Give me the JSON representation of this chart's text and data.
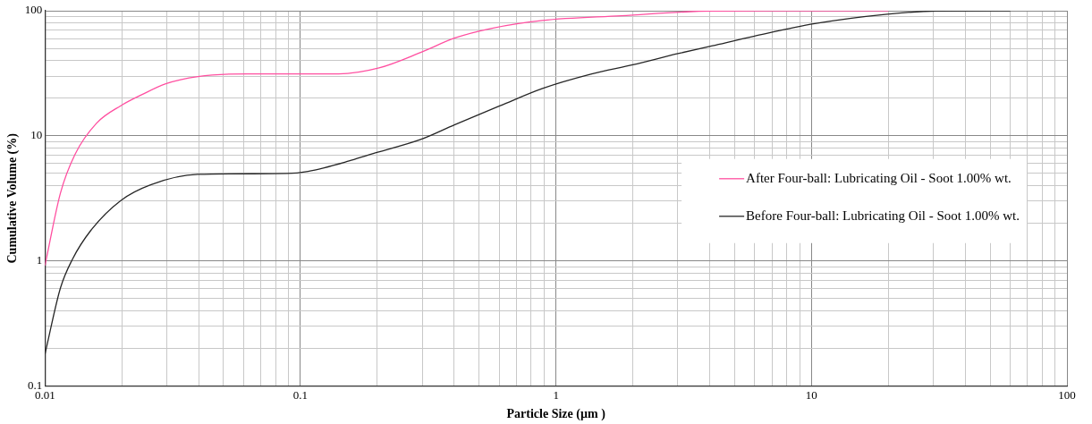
{
  "chart_data": {
    "type": "line",
    "xlabel": "Particle Size (µm )",
    "ylabel": "Cumulative Volume (%)",
    "log": "xy",
    "grid": true,
    "legend": "right",
    "marker": "none",
    "line_style": "solid",
    "xlim": [
      0.01,
      100
    ],
    "ylim": [
      0.1,
      100
    ],
    "xticks": [
      0.01,
      {
        "value": 0.02,
        "label": null
      },
      {
        "value": 0.03,
        "label": null
      },
      {
        "value": 0.04,
        "label": null
      },
      {
        "value": 0.05,
        "label": null
      },
      {
        "value": 0.06,
        "label": null
      },
      {
        "value": 0.07,
        "label": null
      },
      {
        "value": 0.08,
        "label": null
      },
      {
        "value": 0.09,
        "label": null
      },
      0.1,
      {
        "value": 0.2,
        "label": null
      },
      {
        "value": 0.3,
        "label": null
      },
      {
        "value": 0.4,
        "label": null
      },
      {
        "value": 0.5,
        "label": null
      },
      {
        "value": 0.6,
        "label": null
      },
      {
        "value": 0.7,
        "label": null
      },
      {
        "value": 0.8,
        "label": null
      },
      {
        "value": 0.9,
        "label": null
      },
      1,
      {
        "value": 2,
        "label": null
      },
      {
        "value": 3,
        "label": null
      },
      {
        "value": 4,
        "label": null
      },
      {
        "value": 5,
        "label": null
      },
      {
        "value": 6,
        "label": null
      },
      {
        "value": 7,
        "label": null
      },
      {
        "value": 8,
        "label": null
      },
      {
        "value": 9,
        "label": null
      },
      10,
      {
        "value": 20,
        "label": null
      },
      {
        "value": 30,
        "label": null
      },
      {
        "value": 40,
        "label": null
      },
      {
        "value": 50,
        "label": null
      },
      {
        "value": 60,
        "label": null
      },
      {
        "value": 70,
        "label": null
      },
      {
        "value": 80,
        "label": null
      },
      {
        "value": 90,
        "label": null
      },
      100
    ],
    "yticks": [
      0.1,
      {
        "value": 0.2,
        "label": null
      },
      {
        "value": 0.3,
        "label": null
      },
      {
        "value": 0.4,
        "label": null
      },
      {
        "value": 0.5,
        "label": null
      },
      {
        "value": 0.6,
        "label": null
      },
      {
        "value": 0.7,
        "label": null
      },
      {
        "value": 0.8,
        "label": null
      },
      {
        "value": 0.9,
        "label": null
      },
      1,
      {
        "value": 2,
        "label": null
      },
      {
        "value": 3,
        "label": null
      },
      {
        "value": 4,
        "label": null
      },
      {
        "value": 5,
        "label": null
      },
      {
        "value": 6,
        "label": null
      },
      {
        "value": 7,
        "label": null
      },
      {
        "value": 8,
        "label": null
      },
      {
        "value": 9,
        "label": null
      },
      10,
      {
        "value": 20,
        "label": null
      },
      {
        "value": 30,
        "label": null
      },
      {
        "value": 40,
        "label": null
      },
      {
        "value": 50,
        "label": null
      },
      {
        "value": 60,
        "label": null
      },
      {
        "value": 70,
        "label": null
      },
      {
        "value": 80,
        "label": null
      },
      {
        "value": 90,
        "label": null
      },
      100
    ],
    "series": [
      {
        "name": "After Four-ball: Lubricating Oil - Soot 1.00% wt.",
        "color": "#ff4fa0",
        "x": [
          0.01,
          0.0115,
          0.0131,
          0.0159,
          0.0198,
          0.0239,
          0.0297,
          0.0397,
          0.062,
          0.141,
          0.203,
          0.297,
          0.402,
          0.557,
          0.886,
          1.8,
          4.1,
          10,
          20
        ],
        "values": [
          0.92,
          3.5,
          7.1,
          12.6,
          17.4,
          21.3,
          26.1,
          29.8,
          31.3,
          31.3,
          34.9,
          46.6,
          60.6,
          72.2,
          83.6,
          91.1,
          99.5,
          100,
          100
        ]
      },
      {
        "name": "Before Four-ball: Lubricating Oil - Soot 1.00% wt.",
        "color": "#262626",
        "x": [
          0.01,
          0.0115,
          0.0128,
          0.0151,
          0.0198,
          0.0259,
          0.0397,
          0.0886,
          0.107,
          0.155,
          0.185,
          0.297,
          0.402,
          0.605,
          0.886,
          1.37,
          2,
          3,
          4.1,
          5.94,
          10.3,
          19.8,
          30.8,
          60
        ],
        "values": [
          0.18,
          0.61,
          1.03,
          1.75,
          3.04,
          4.06,
          4.92,
          5,
          5.2,
          6.3,
          7.06,
          9.4,
          12.3,
          17.4,
          23.9,
          31.1,
          37,
          45.4,
          52.5,
          62.4,
          78.8,
          93.8,
          99.5,
          100
        ]
      }
    ]
  }
}
